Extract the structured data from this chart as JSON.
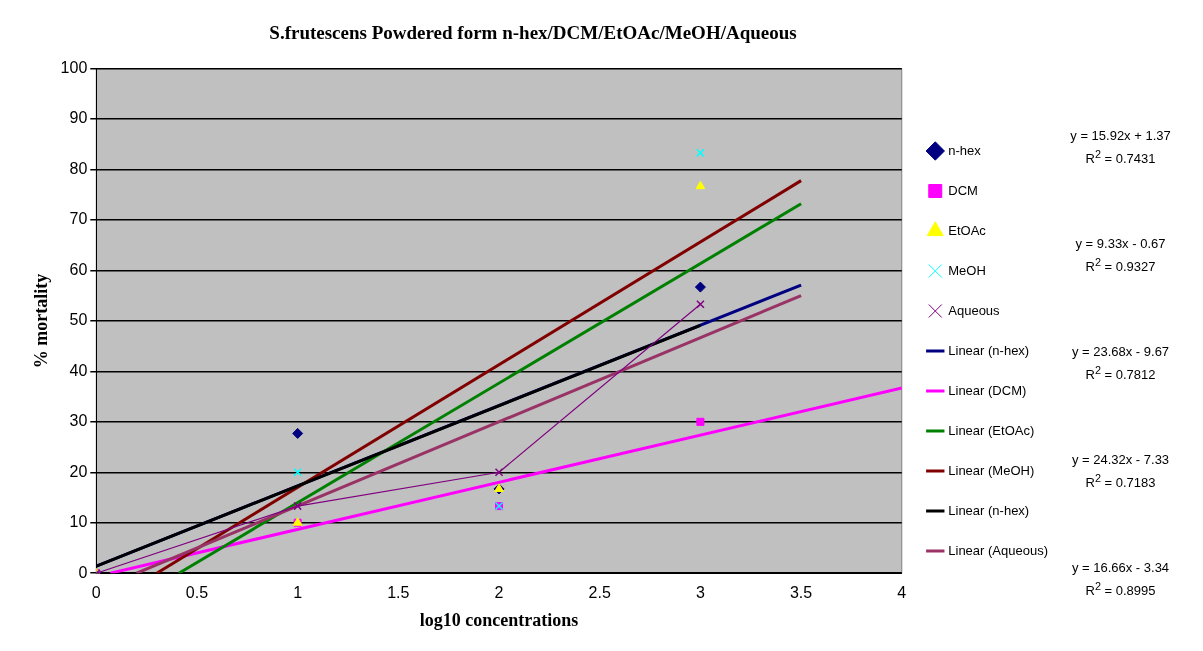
{
  "chart_data": {
    "type": "scatter",
    "title": "S.frutescens  Powdered form n-hex/DCM/EtOAc/MeOH/Aqueous",
    "xlabel": "log10 concentrations",
    "ylabel": "% mortality",
    "x": [
      0,
      1,
      2,
      3
    ],
    "series": [
      {
        "name": "n-hex",
        "color": "#000080",
        "marker": "diamond",
        "values": [
          0,
          27.7,
          16.7,
          56.7
        ]
      },
      {
        "name": "DCM",
        "color": "#ff00ff",
        "marker": "square",
        "values": [
          0,
          10,
          13.3,
          30
        ]
      },
      {
        "name": "EtOAc",
        "color": "#ffff00",
        "marker": "triangle",
        "values": [
          0,
          10,
          16.7,
          76.7
        ]
      },
      {
        "name": "MeOH",
        "color": "#00ffff",
        "marker": "cross",
        "values": [
          0,
          20,
          13.3,
          83.3
        ]
      },
      {
        "name": "Aqueous",
        "type": "line",
        "color": "#800080",
        "marker": "cross",
        "values": [
          0,
          13.3,
          20,
          53.3
        ]
      },
      {
        "name": "Linear (n-hex)",
        "type": "line",
        "color": "#000080",
        "marker": "none",
        "x": [
          0,
          3.5
        ],
        "values": [
          1.4,
          57.1
        ]
      },
      {
        "name": "Linear (DCM)",
        "type": "line",
        "color": "#ff00ff",
        "marker": "none",
        "x": [
          0.07,
          4
        ],
        "values": [
          0,
          36.7
        ]
      },
      {
        "name": "Linear (EtOAc)",
        "type": "line",
        "color": "#008000",
        "marker": "none",
        "x": [
          0.41,
          3.5
        ],
        "values": [
          0,
          73.2
        ]
      },
      {
        "name": "Linear (MeOH)",
        "type": "line",
        "color": "#800000",
        "marker": "none",
        "x": [
          0.3,
          3.5
        ],
        "values": [
          0,
          77.8
        ]
      },
      {
        "name": "Linear (n-hex)",
        "type": "line",
        "color": "#000000",
        "marker": "none",
        "x": [
          0,
          3
        ],
        "values": [
          1.4,
          49.1
        ]
      },
      {
        "name": "Linear (Aqueous)",
        "type": "line",
        "color": "#993366",
        "marker": "none",
        "x": [
          0.2,
          3.5
        ],
        "values": [
          0,
          55
        ]
      }
    ],
    "xlim": [
      0,
      4
    ],
    "xticks": [
      0,
      0.5,
      1,
      1.5,
      2,
      2.5,
      3,
      3.5,
      4
    ],
    "ylim": [
      0,
      100
    ],
    "yticks": [
      0,
      10,
      20,
      30,
      40,
      50,
      60,
      70,
      80,
      90,
      100
    ],
    "grid": "y",
    "legend": "right",
    "annotations": [
      "y = 15.92x + 1.37",
      "R$^{2}$ = 0.7431",
      "y = 9.33x - 0.67",
      "R$^{2}$ = 0.9327",
      "y = 23.68x - 9.67",
      "R$^{2}$ = 0.7812",
      "y = 24.32x - 7.33",
      "R$^{2}$ = 0.7183",
      "y = 16.66x - 3.34",
      "R$^{2}$ = 0.8995"
    ]
  }
}
